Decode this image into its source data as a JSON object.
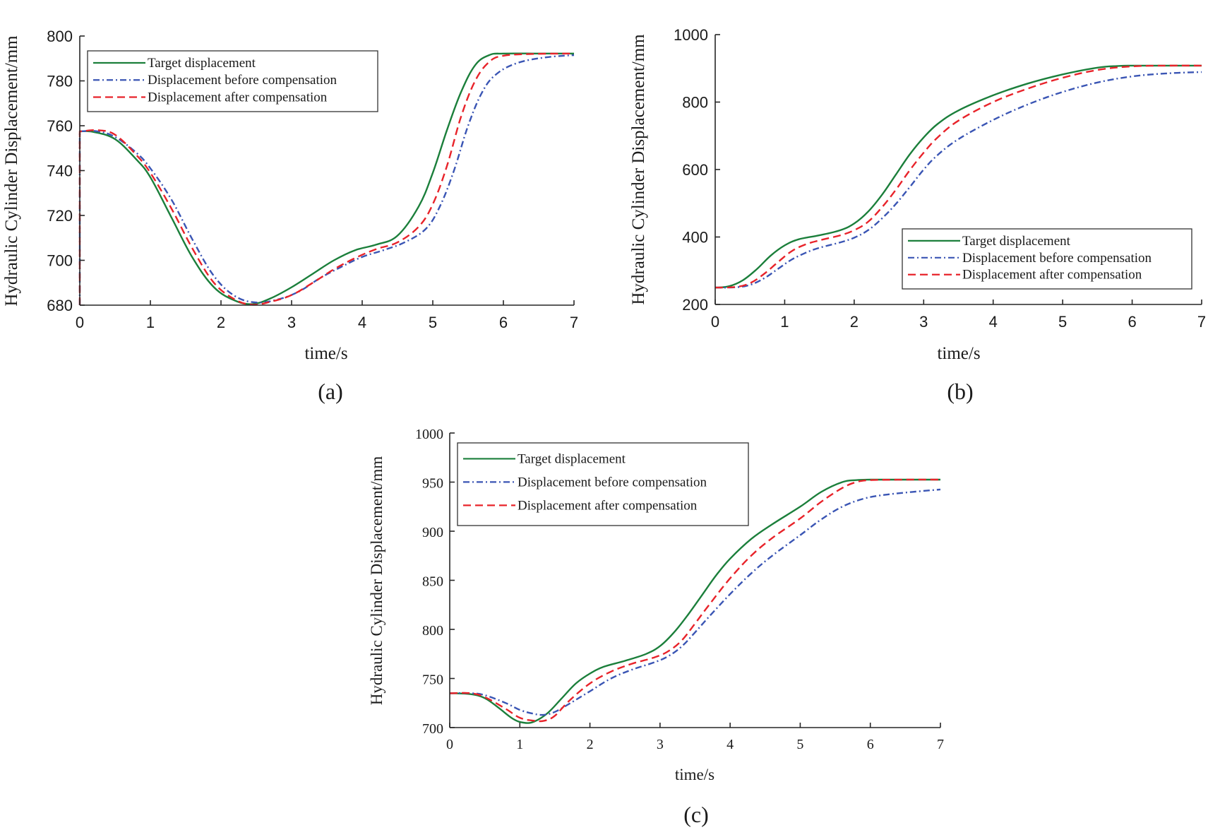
{
  "figure": {
    "panels": [
      "a",
      "b",
      "c"
    ]
  },
  "chart_data": [
    {
      "panel": "a",
      "caption": "(a)",
      "type": "line",
      "title": "",
      "xlabel": "time/s",
      "ylabel": "Hydraulic Cylinder Displacement/mm",
      "xlim": [
        0,
        7
      ],
      "ylim": [
        680,
        800
      ],
      "xticks": [
        0,
        1,
        2,
        3,
        4,
        5,
        6,
        7
      ],
      "yticks": [
        680,
        700,
        720,
        740,
        760,
        780,
        800
      ],
      "grid": false,
      "legend_position": "top-left",
      "series": [
        {
          "name": "Target displacement",
          "color": "#1b7f3b",
          "style": "solid",
          "x": [
            0,
            0.2,
            0.5,
            0.8,
            1.0,
            1.3,
            1.6,
            1.9,
            2.2,
            2.45,
            2.7,
            3.0,
            3.3,
            3.6,
            3.9,
            4.2,
            4.5,
            4.8,
            5.0,
            5.2,
            5.4,
            5.6,
            5.8,
            6.0,
            6.5,
            7.0
          ],
          "y": [
            757.5,
            757.2,
            754,
            745,
            737,
            719,
            701,
            688,
            682,
            680.5,
            683,
            688,
            694,
            700,
            704.5,
            707,
            711,
            724,
            739,
            758,
            775,
            787,
            791.5,
            792.2,
            792.2,
            792.2
          ]
        },
        {
          "name": "Displacement before compensation",
          "color": "#3a55b4",
          "style": "dashdot",
          "x": [
            0,
            0,
            0.25,
            0.5,
            0.8,
            1.0,
            1.3,
            1.6,
            1.9,
            2.2,
            2.5,
            2.8,
            3.1,
            3.4,
            3.7,
            4.0,
            4.3,
            4.6,
            4.9,
            5.1,
            5.3,
            5.5,
            5.7,
            5.9,
            6.2,
            6.6,
            7.0
          ],
          "y": [
            680,
            757.5,
            757.5,
            755,
            748,
            741,
            727,
            709,
            693,
            684,
            681.2,
            682.5,
            686,
            692,
            697,
            701.5,
            704.5,
            708,
            714,
            724,
            740,
            760,
            775,
            783,
            788,
            790.5,
            791.5
          ]
        },
        {
          "name": "Displacement after compensation",
          "color": "#e8232a",
          "style": "dashed",
          "x": [
            0,
            0,
            0.25,
            0.5,
            0.8,
            1.0,
            1.3,
            1.6,
            1.9,
            2.2,
            2.45,
            2.7,
            3.0,
            3.3,
            3.6,
            3.9,
            4.2,
            4.5,
            4.8,
            5.0,
            5.2,
            5.4,
            5.6,
            5.8,
            6.0,
            6.4,
            7.0
          ],
          "y": [
            680,
            757.5,
            758,
            756,
            747,
            739,
            723,
            705,
            690,
            682.5,
            680.2,
            681.5,
            684.5,
            690,
            696,
            701,
            705,
            708,
            715,
            725,
            742,
            764,
            780,
            788.5,
            791.2,
            792,
            792.2
          ]
        }
      ]
    },
    {
      "panel": "b",
      "caption": "(b)",
      "type": "line",
      "title": "",
      "xlabel": "time/s",
      "ylabel": "Hydraulic Cylinder Displacement/mm",
      "xlim": [
        0,
        7
      ],
      "ylim": [
        200,
        1000
      ],
      "xticks": [
        0,
        1,
        2,
        3,
        4,
        5,
        6,
        7
      ],
      "yticks": [
        200,
        400,
        600,
        800,
        1000
      ],
      "grid": false,
      "legend_position": "bottom-right",
      "series": [
        {
          "name": "Target displacement",
          "color": "#1b7f3b",
          "style": "solid",
          "x": [
            0,
            0.2,
            0.4,
            0.6,
            0.8,
            1.0,
            1.2,
            1.5,
            1.8,
            2.0,
            2.2,
            2.4,
            2.6,
            2.8,
            3.0,
            3.2,
            3.5,
            4.0,
            4.5,
            5.0,
            5.5,
            5.8,
            6.0,
            6.5,
            7.0
          ],
          "y": [
            250,
            254,
            272,
            305,
            345,
            375,
            393,
            405,
            420,
            440,
            475,
            525,
            585,
            645,
            695,
            735,
            775,
            820,
            855,
            882,
            902,
            907,
            908,
            908,
            908
          ]
        },
        {
          "name": "Displacement before compensation",
          "color": "#3a55b4",
          "style": "dashdot",
          "x": [
            0,
            0.3,
            0.5,
            0.7,
            0.9,
            1.1,
            1.3,
            1.5,
            1.8,
            2.0,
            2.2,
            2.4,
            2.6,
            2.8,
            3.0,
            3.2,
            3.5,
            4.0,
            4.5,
            5.0,
            5.5,
            6.0,
            6.5,
            7.0
          ],
          "y": [
            250,
            251,
            258,
            277,
            305,
            333,
            353,
            368,
            384,
            398,
            420,
            455,
            498,
            548,
            600,
            643,
            690,
            747,
            793,
            830,
            858,
            876,
            885,
            889
          ]
        },
        {
          "name": "Displacement after compensation",
          "color": "#e8232a",
          "style": "dashed",
          "x": [
            0,
            0.3,
            0.5,
            0.7,
            0.9,
            1.1,
            1.3,
            1.5,
            1.8,
            2.0,
            2.2,
            2.4,
            2.6,
            2.8,
            3.0,
            3.2,
            3.5,
            4.0,
            4.5,
            5.0,
            5.5,
            6.0,
            6.5,
            7.0
          ],
          "y": [
            250,
            252,
            263,
            290,
            325,
            358,
            378,
            390,
            405,
            420,
            445,
            488,
            540,
            598,
            650,
            695,
            745,
            800,
            840,
            872,
            895,
            906,
            908,
            908
          ]
        }
      ]
    },
    {
      "panel": "c",
      "caption": "(c)",
      "type": "line",
      "title": "",
      "xlabel": "time/s",
      "ylabel": "Hydraulic Cylinder Displacement/mm",
      "xlim": [
        0,
        7
      ],
      "ylim": [
        700,
        1000
      ],
      "xticks": [
        0,
        1,
        2,
        3,
        4,
        5,
        6,
        7
      ],
      "yticks": [
        700,
        750,
        800,
        850,
        900,
        950,
        1000
      ],
      "grid": false,
      "legend_position": "top-left",
      "series": [
        {
          "name": "Target displacement",
          "color": "#1b7f3b",
          "style": "solid",
          "x": [
            0,
            0.3,
            0.5,
            0.7,
            0.9,
            1.05,
            1.2,
            1.4,
            1.6,
            1.8,
            2.0,
            2.2,
            2.5,
            2.8,
            3.0,
            3.2,
            3.4,
            3.6,
            3.8,
            4.0,
            4.3,
            4.6,
            5.0,
            5.3,
            5.6,
            5.8,
            6.0,
            6.5,
            7.0
          ],
          "y": [
            735,
            734,
            730,
            720,
            709,
            705,
            706,
            715,
            730,
            745,
            755,
            762,
            768,
            775,
            783,
            797,
            815,
            835,
            855,
            872,
            892,
            907,
            925,
            940,
            950,
            952,
            952.5,
            952.5,
            952.5
          ]
        },
        {
          "name": "Displacement before compensation",
          "color": "#3a55b4",
          "style": "dashdot",
          "x": [
            0,
            0.3,
            0.5,
            0.8,
            1.0,
            1.2,
            1.35,
            1.5,
            1.7,
            2.0,
            2.3,
            2.6,
            2.9,
            3.1,
            3.3,
            3.5,
            3.7,
            4.0,
            4.3,
            4.6,
            5.0,
            5.3,
            5.6,
            5.9,
            6.2,
            6.6,
            7.0
          ],
          "y": [
            735,
            735,
            733,
            725,
            718,
            714,
            713,
            716,
            724,
            737,
            750,
            759,
            766,
            772,
            782,
            797,
            813,
            836,
            857,
            875,
            896,
            912,
            925,
            933,
            937,
            940,
            942.5
          ]
        },
        {
          "name": "Displacement after compensation",
          "color": "#e8232a",
          "style": "dashed",
          "x": [
            0,
            0.3,
            0.5,
            0.8,
            1.0,
            1.2,
            1.35,
            1.5,
            1.7,
            2.0,
            2.3,
            2.6,
            2.9,
            3.1,
            3.3,
            3.5,
            3.7,
            4.0,
            4.3,
            4.6,
            5.0,
            5.3,
            5.6,
            5.8,
            6.0,
            6.5,
            7.0
          ],
          "y": [
            735,
            735,
            731,
            719,
            710,
            707,
            707,
            712,
            727,
            745,
            757,
            765,
            771,
            777,
            788,
            806,
            825,
            852,
            875,
            893,
            913,
            930,
            944,
            950,
            952,
            952.5,
            952.5
          ]
        }
      ]
    }
  ]
}
